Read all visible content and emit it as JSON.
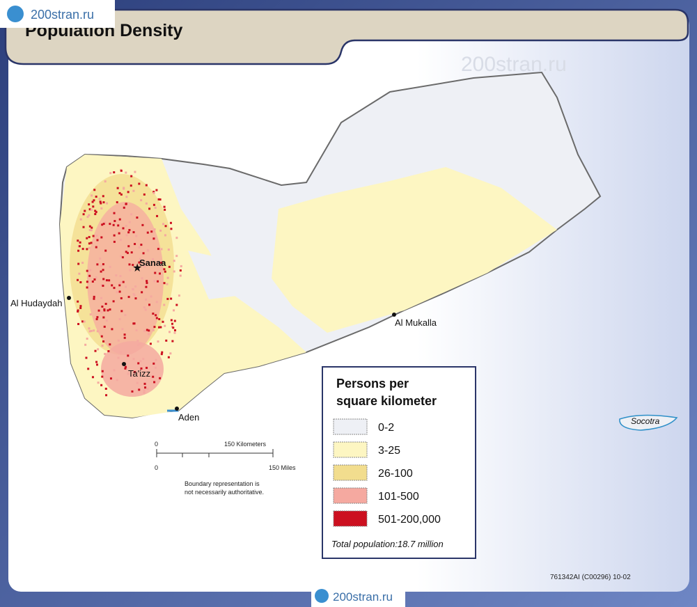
{
  "header": {
    "title": "Population Density"
  },
  "watermarks": [
    "200stran.ru",
    "200stran.ru",
    "200stran.ru"
  ],
  "places": {
    "sanaa": "Sanaa",
    "al_hudaydah": "Al Hudaydah",
    "al_mukalla": "Al Mukalla",
    "taizz": "Ta'izz",
    "aden": "Aden",
    "socotra": "Socotra"
  },
  "scale": {
    "km_zero": "0",
    "km_label": "150 Kilometers",
    "mi_zero": "0",
    "mi_label": "150 Miles"
  },
  "note": [
    "Boundary representation is",
    "not necessarily authoritative."
  ],
  "legend": {
    "title": [
      "Persons per",
      "square kilometer"
    ],
    "items": [
      {
        "label": "0-2",
        "color": "#eef0f5"
      },
      {
        "label": "3-25",
        "color": "#fdf6c2"
      },
      {
        "label": "26-100",
        "color": "#f2dd8e"
      },
      {
        "label": "101-500",
        "color": "#f5a9a0"
      },
      {
        "label": "501-200,000",
        "color": "#cc1020"
      }
    ],
    "total": "Total population:18.7 million"
  },
  "code": "761342AI (C00296) 10-02"
}
